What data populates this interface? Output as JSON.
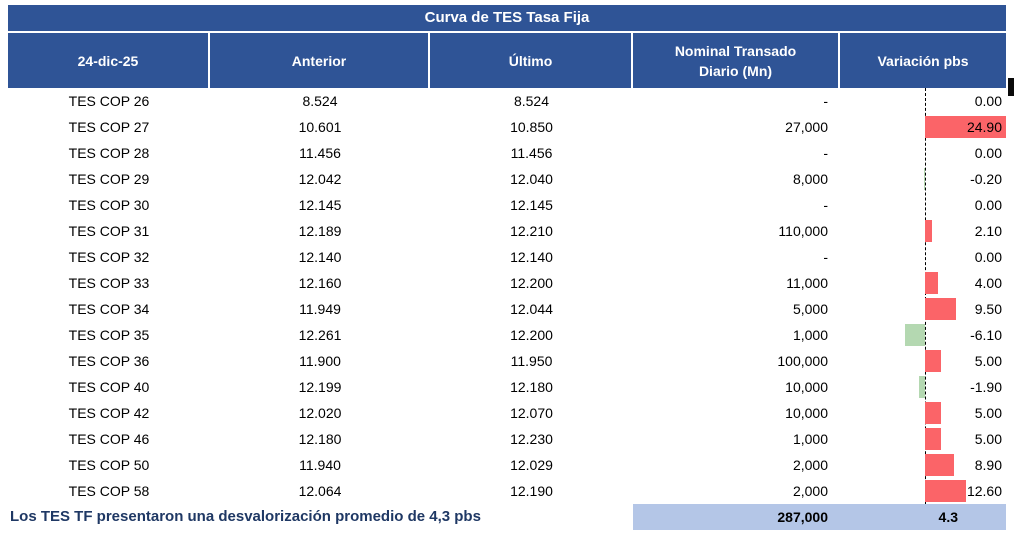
{
  "title": "Curva de TES Tasa Fija",
  "header": {
    "date": "24-dic-25",
    "anterior": "Anterior",
    "ultimo": "Último",
    "nominal": "Nominal Transado\nDiario (Mn)",
    "variacion": "Variación pbs"
  },
  "table": {
    "rows": [
      {
        "bond": "TES COP 26",
        "anterior": "8.524",
        "ultimo": "8.524",
        "nominal": "-",
        "variacion": 0,
        "variacion_label": "0.00"
      },
      {
        "bond": "TES COP 27",
        "anterior": "10.601",
        "ultimo": "10.850",
        "nominal": "27,000",
        "variacion": 24.9,
        "variacion_label": "24.90"
      },
      {
        "bond": "TES COP 28",
        "anterior": "11.456",
        "ultimo": "11.456",
        "nominal": "-",
        "variacion": 0,
        "variacion_label": "0.00"
      },
      {
        "bond": "TES COP 29",
        "anterior": "12.042",
        "ultimo": "12.040",
        "nominal": "8,000",
        "variacion": -0.2,
        "variacion_label": "-0.20"
      },
      {
        "bond": "TES COP 30",
        "anterior": "12.145",
        "ultimo": "12.145",
        "nominal": "-",
        "variacion": 0,
        "variacion_label": "0.00"
      },
      {
        "bond": "TES COP 31",
        "anterior": "12.189",
        "ultimo": "12.210",
        "nominal": "110,000",
        "variacion": 2.1,
        "variacion_label": "2.10"
      },
      {
        "bond": "TES COP 32",
        "anterior": "12.140",
        "ultimo": "12.140",
        "nominal": "-",
        "variacion": 0,
        "variacion_label": "0.00"
      },
      {
        "bond": "TES COP 33",
        "anterior": "12.160",
        "ultimo": "12.200",
        "nominal": "11,000",
        "variacion": 4,
        "variacion_label": "4.00"
      },
      {
        "bond": "TES COP 34",
        "anterior": "11.949",
        "ultimo": "12.044",
        "nominal": "5,000",
        "variacion": 9.5,
        "variacion_label": "9.50"
      },
      {
        "bond": "TES COP 35",
        "anterior": "12.261",
        "ultimo": "12.200",
        "nominal": "1,000",
        "variacion": -6.1,
        "variacion_label": "-6.10"
      },
      {
        "bond": "TES COP 36",
        "anterior": "11.900",
        "ultimo": "11.950",
        "nominal": "100,000",
        "variacion": 5,
        "variacion_label": "5.00"
      },
      {
        "bond": "TES COP 40",
        "anterior": "12.199",
        "ultimo": "12.180",
        "nominal": "10,000",
        "variacion": -1.9,
        "variacion_label": "-1.90"
      },
      {
        "bond": "TES COP 42",
        "anterior": "12.020",
        "ultimo": "12.070",
        "nominal": "10,000",
        "variacion": 5,
        "variacion_label": "5.00"
      },
      {
        "bond": "TES COP 46",
        "anterior": "12.180",
        "ultimo": "12.230",
        "nominal": "1,000",
        "variacion": 5,
        "variacion_label": "5.00"
      },
      {
        "bond": "TES COP 50",
        "anterior": "11.940",
        "ultimo": "12.029",
        "nominal": "2,000",
        "variacion": 8.9,
        "variacion_label": "8.90"
      },
      {
        "bond": "TES COP 58",
        "anterior": "12.064",
        "ultimo": "12.190",
        "nominal": "2,000",
        "variacion": 12.6,
        "variacion_label": "12.60"
      }
    ]
  },
  "footer": {
    "note": "Los TES TF presentaron una desvalorización promedio de 4,3 pbs",
    "total_nominal": "287,000",
    "avg_variacion": "4.3"
  },
  "colors": {
    "header_blue": "#2F5496",
    "footer_band_blue": "#B4C6E7",
    "positive_bar_red": "#FB6468",
    "negative_bar_green": "#B4D8B1",
    "note_navy": "#1F3864",
    "baseline_dash": "#000000"
  },
  "chart_data": {
    "type": "table",
    "title": "Curva de TES Tasa Fija",
    "date": "24-dic-25",
    "columns": [
      "24-dic-25",
      "Anterior",
      "Último",
      "Nominal Transado Diario (Mn)",
      "Variación pbs"
    ],
    "rows": [
      [
        "TES COP 26",
        8.524,
        8.524,
        null,
        0.0
      ],
      [
        "TES COP 27",
        10.601,
        10.85,
        27000,
        24.9
      ],
      [
        "TES COP 28",
        11.456,
        11.456,
        null,
        0.0
      ],
      [
        "TES COP 29",
        12.042,
        12.04,
        8000,
        -0.2
      ],
      [
        "TES COP 30",
        12.145,
        12.145,
        null,
        0.0
      ],
      [
        "TES COP 31",
        12.189,
        12.21,
        110000,
        2.1
      ],
      [
        "TES COP 32",
        12.14,
        12.14,
        null,
        0.0
      ],
      [
        "TES COP 33",
        12.16,
        12.2,
        11000,
        4.0
      ],
      [
        "TES COP 34",
        11.949,
        12.044,
        5000,
        9.5
      ],
      [
        "TES COP 35",
        12.261,
        12.2,
        1000,
        -6.1
      ],
      [
        "TES COP 36",
        11.9,
        11.95,
        100000,
        5.0
      ],
      [
        "TES COP 40",
        12.199,
        12.18,
        10000,
        -1.9
      ],
      [
        "TES COP 42",
        12.02,
        12.07,
        10000,
        5.0
      ],
      [
        "TES COP 46",
        12.18,
        12.23,
        1000,
        5.0
      ],
      [
        "TES COP 50",
        11.94,
        12.029,
        2000,
        8.9
      ],
      [
        "TES COP 58",
        12.064,
        12.19,
        2000,
        12.6
      ]
    ],
    "totals": {
      "nominal_transado_diario": 287000,
      "variacion_promedio_pbs": 4.3
    },
    "note": "Los TES TF presentaron una desvalorización promedio de 4,3 pbs",
    "databar": {
      "column": "Variación pbs",
      "positive_color": "#FB6468",
      "negative_color": "#B4D8B1",
      "baseline": "dashed vertical line, positive bars grow right, negative bars grow left"
    }
  }
}
